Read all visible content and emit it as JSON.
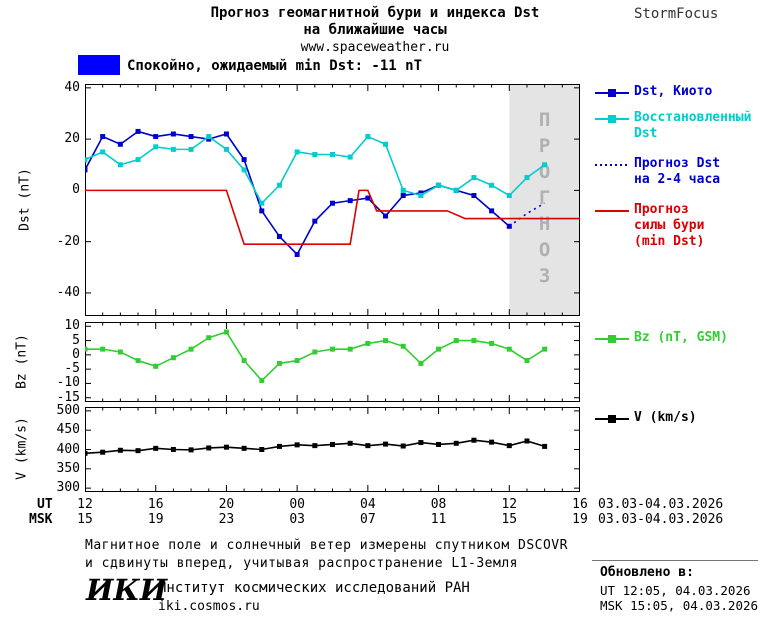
{
  "header": {
    "title_line1": "Прогноз геомагнитной бури и индекса Dst",
    "title_line2": "на ближайшие часы",
    "title_line3": "www.spaceweather.ru",
    "brand": "StormFocus"
  },
  "status_banner": {
    "label": "Спокойно, ожидаемый min Dst: -11 nT",
    "color": "#0000ff"
  },
  "forecast_overlay": {
    "label": "ПРОГНОЗ",
    "from_hour": 24,
    "to_hour": 28,
    "bg": "#e4e4e4",
    "text_color": "#b0b0b0"
  },
  "chart_data": [
    {
      "type": "line",
      "ylabel": "Dst (nT)",
      "xlabel": "",
      "x_range": [
        0,
        28
      ],
      "x_tick_hours": [
        0,
        4,
        8,
        12,
        16,
        20,
        24,
        28
      ],
      "ylim": [
        -49,
        41.5
      ],
      "yticks": [
        40,
        20,
        0,
        -20,
        -40
      ],
      "grid": false,
      "series": [
        {
          "name": "Dst, Киото",
          "color": "#0000cd",
          "marker": "square",
          "line": "solid",
          "x": [
            0,
            1,
            2,
            3,
            4,
            5,
            6,
            7,
            8,
            9,
            10,
            11,
            12,
            13,
            14,
            15,
            16,
            17,
            18,
            19,
            20,
            21,
            22,
            23,
            24
          ],
          "values": [
            8,
            21,
            18,
            23,
            21,
            22,
            21,
            20,
            22,
            12,
            -8,
            -18,
            -25,
            -12,
            -5,
            -4,
            -3,
            -10,
            -2,
            -1,
            2,
            0,
            -2,
            -8,
            -14
          ]
        },
        {
          "name": "Восстановленный Dst",
          "color": "#00cdcd",
          "marker": "square",
          "line": "solid",
          "x": [
            0,
            1,
            2,
            3,
            4,
            5,
            6,
            7,
            8,
            9,
            10,
            11,
            12,
            13,
            14,
            15,
            16,
            17,
            18,
            19,
            20,
            21,
            22,
            23,
            24,
            25,
            26
          ],
          "values": [
            12,
            15,
            10,
            12,
            17,
            16,
            16,
            21,
            16,
            8,
            -5,
            2,
            15,
            14,
            14,
            13,
            21,
            18,
            0,
            -2,
            2,
            0,
            5,
            2,
            -2,
            5,
            10
          ]
        },
        {
          "name": "Прогноз Dst на 2-4 часа",
          "color": "#0000cd",
          "marker": "none",
          "line": "dotted",
          "x": [
            24,
            25,
            26
          ],
          "values": [
            -14,
            -9,
            -5
          ]
        },
        {
          "name": "Прогноз силы бури (min Dst)",
          "color": "#dc0000",
          "marker": "none",
          "line": "solid",
          "x": [
            0,
            8,
            9,
            15,
            15.5,
            16,
            16.5,
            20.5,
            21.5,
            28
          ],
          "values": [
            0,
            0,
            -21,
            -21,
            0,
            0,
            -8,
            -8,
            -11,
            -11
          ]
        }
      ]
    },
    {
      "type": "line",
      "ylabel": "Bz (nT)",
      "xlabel": "",
      "x_range": [
        0,
        28
      ],
      "x_tick_hours": [
        0,
        4,
        8,
        12,
        16,
        20,
        24,
        28
      ],
      "ylim": [
        -16.5,
        11.5
      ],
      "yticks": [
        10,
        5,
        0,
        -5,
        -10,
        -15
      ],
      "grid": false,
      "series": [
        {
          "name": "Bz (nT, GSM)",
          "color": "#32cd32",
          "marker": "square",
          "line": "solid",
          "x": [
            0,
            1,
            2,
            3,
            4,
            5,
            6,
            7,
            8,
            9,
            10,
            11,
            12,
            13,
            14,
            15,
            16,
            17,
            18,
            19,
            20,
            21,
            22,
            23,
            24,
            25,
            26
          ],
          "values": [
            2,
            2,
            1,
            -2,
            -4,
            -1,
            2,
            6,
            8,
            -2,
            -9,
            -3,
            -2,
            1,
            2,
            2,
            4,
            5,
            3,
            -3,
            2,
            5,
            5,
            4,
            2,
            -2,
            2
          ]
        }
      ]
    },
    {
      "type": "line",
      "ylabel": "V (km/s)",
      "xlabel": "",
      "x_range": [
        0,
        28
      ],
      "x_tick_hours": [
        0,
        4,
        8,
        12,
        16,
        20,
        24,
        28
      ],
      "ylim": [
        290,
        510
      ],
      "yticks": [
        500,
        450,
        400,
        350,
        300
      ],
      "grid": false,
      "series": [
        {
          "name": "V (km/s)",
          "color": "#000000",
          "marker": "square",
          "line": "solid",
          "x": [
            0,
            1,
            2,
            3,
            4,
            5,
            6,
            7,
            8,
            9,
            10,
            11,
            12,
            13,
            14,
            15,
            16,
            17,
            18,
            19,
            20,
            21,
            22,
            23,
            24,
            25,
            26
          ],
          "values": [
            390,
            393,
            398,
            397,
            403,
            400,
            399,
            404,
            406,
            403,
            400,
            408,
            412,
            410,
            413,
            416,
            410,
            414,
            409,
            418,
            413,
            416,
            424,
            419,
            410,
            422,
            408
          ]
        }
      ]
    }
  ],
  "xaxis": {
    "ut_label": "UT",
    "msk_label": "MSK",
    "ut_ticks": [
      "12",
      "16",
      "20",
      "00",
      "04",
      "08",
      "12",
      "16"
    ],
    "msk_ticks": [
      "15",
      "19",
      "23",
      "03",
      "07",
      "11",
      "15",
      "19"
    ],
    "ut_date": "03.03-04.03.2026",
    "msk_date": "03.03-04.03.2026"
  },
  "side_legend": [
    {
      "lines": [
        "Dst, Киото"
      ],
      "color": "#0000cd",
      "marker": "square",
      "line": "solid"
    },
    {
      "lines": [
        "Восстановленный",
        "Dst"
      ],
      "color": "#00cdcd",
      "marker": "square",
      "line": "solid"
    },
    {
      "lines": [
        "Прогноз Dst",
        "на 2-4 часа"
      ],
      "color": "#0000cd",
      "marker": "none",
      "line": "dotted"
    },
    {
      "lines": [
        "Прогноз",
        "силы бури",
        "(min Dst)"
      ],
      "color": "#dc0000",
      "marker": "none",
      "line": "solid"
    },
    {
      "lines": [
        "Bz (nT, GSM)"
      ],
      "color": "#32cd32",
      "marker": "square",
      "line": "solid"
    },
    {
      "lines": [
        "V (km/s)"
      ],
      "color": "#000000",
      "marker": "square",
      "line": "solid"
    }
  ],
  "footer": {
    "note_line1": "Магнитное поле и солнечный ветер измерены спутником DSCOVR",
    "note_line2": "и сдвинуты вперед, учитывая распространение L1-Земля",
    "logo": "ИКИ",
    "institute": "Институт космических исследований РАН",
    "site": "iki.cosmos.ru",
    "updated_label": "Обновлено в:",
    "updated_ut": "UT  12:05, 04.03.2026",
    "updated_msk": "MSK 15:05, 04.03.2026"
  }
}
